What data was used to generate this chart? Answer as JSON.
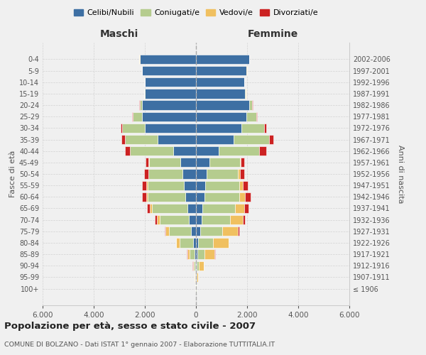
{
  "age_groups": [
    "100+",
    "95-99",
    "90-94",
    "85-89",
    "80-84",
    "75-79",
    "70-74",
    "65-69",
    "60-64",
    "55-59",
    "50-54",
    "45-49",
    "40-44",
    "35-39",
    "30-34",
    "25-29",
    "20-24",
    "15-19",
    "10-14",
    "5-9",
    "0-4"
  ],
  "birth_years": [
    "≤ 1906",
    "1907-1911",
    "1912-1916",
    "1917-1921",
    "1922-1926",
    "1927-1931",
    "1932-1936",
    "1937-1941",
    "1942-1946",
    "1947-1951",
    "1952-1956",
    "1957-1961",
    "1962-1966",
    "1967-1971",
    "1972-1976",
    "1977-1981",
    "1982-1986",
    "1987-1991",
    "1992-1996",
    "1997-2001",
    "2002-2006"
  ],
  "maschi": {
    "celibi": [
      10,
      15,
      30,
      60,
      110,
      190,
      270,
      340,
      420,
      470,
      520,
      610,
      900,
      1500,
      2000,
      2100,
      2100,
      2000,
      2000,
      2100,
      2200
    ],
    "coniugati": [
      5,
      15,
      55,
      190,
      520,
      870,
      1150,
      1380,
      1480,
      1430,
      1330,
      1230,
      1680,
      1280,
      880,
      380,
      95,
      18,
      5,
      5,
      5
    ],
    "vedovi": [
      5,
      12,
      38,
      95,
      140,
      125,
      105,
      75,
      55,
      38,
      18,
      8,
      8,
      5,
      5,
      5,
      5,
      5,
      5,
      5,
      5
    ],
    "divorziati": [
      0,
      0,
      4,
      8,
      18,
      38,
      75,
      115,
      155,
      165,
      155,
      125,
      195,
      145,
      65,
      28,
      10,
      5,
      2,
      0,
      0
    ]
  },
  "femmine": {
    "nubili": [
      10,
      18,
      28,
      55,
      95,
      170,
      210,
      260,
      320,
      370,
      420,
      540,
      890,
      1480,
      1780,
      1980,
      2080,
      1930,
      1880,
      1980,
      2080
    ],
    "coniugate": [
      5,
      22,
      95,
      285,
      580,
      870,
      1120,
      1270,
      1370,
      1320,
      1220,
      1170,
      1570,
      1370,
      880,
      380,
      115,
      28,
      8,
      5,
      5
    ],
    "vedove": [
      10,
      48,
      175,
      390,
      590,
      590,
      490,
      370,
      240,
      145,
      75,
      38,
      18,
      10,
      5,
      5,
      5,
      5,
      5,
      5,
      5
    ],
    "divorziate": [
      0,
      0,
      4,
      8,
      18,
      55,
      95,
      145,
      195,
      195,
      175,
      145,
      275,
      175,
      75,
      28,
      10,
      5,
      2,
      0,
      0
    ]
  },
  "colors": {
    "celibi": "#3d6fa3",
    "coniugati": "#b5cc8e",
    "vedovi": "#f0c060",
    "divorziati": "#cc2222"
  },
  "legend_labels": [
    "Celibi/Nubili",
    "Coniugati/e",
    "Vedovi/e",
    "Divorziati/e"
  ],
  "legend_colors": [
    "#3d6fa3",
    "#b5cc8e",
    "#f0c060",
    "#cc2222"
  ],
  "title": "Popolazione per età, sesso e stato civile - 2007",
  "subtitle": "COMUNE DI BOLZANO - Dati ISTAT 1° gennaio 2007 - Elaborazione TUTTITALIA.IT",
  "ylabel": "Fasce di età",
  "ylabel_right": "Anni di nascita",
  "label_maschi": "Maschi",
  "label_femmine": "Femmine",
  "xlim": 6000,
  "bg_color": "#f0f0f0"
}
